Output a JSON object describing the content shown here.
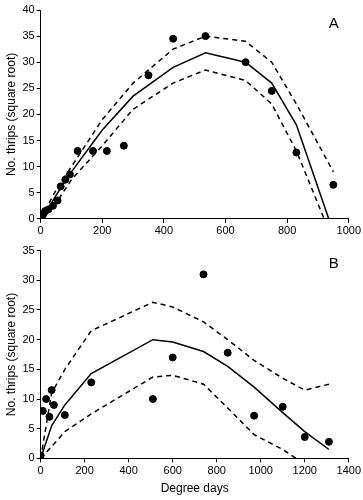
{
  "chart_data": [
    {
      "type": "scatter",
      "title": "A",
      "ylabel": "No. thrips (square root)",
      "xlim": [
        0,
        1000
      ],
      "xticks": [
        0,
        200,
        400,
        600,
        800,
        1000
      ],
      "ylim": [
        0,
        40
      ],
      "yticks": [
        0,
        5,
        10,
        15,
        20,
        25,
        30,
        35,
        40
      ],
      "grid": false,
      "series": [
        {
          "type": "scatter",
          "marker": "circle",
          "color": "#000000",
          "x": [
            0,
            5,
            10,
            15,
            25,
            40,
            55,
            65,
            80,
            95,
            120,
            170,
            215,
            270,
            350,
            430,
            535,
            665,
            750,
            830,
            950
          ],
          "values": [
            0,
            0.5,
            1,
            1.5,
            1.8,
            2.5,
            3.5,
            6.2,
            7.5,
            8.5,
            13,
            13,
            13,
            14,
            27.5,
            34.5,
            35,
            30,
            24.5,
            12.7,
            6.5
          ]
        },
        {
          "type": "line",
          "line_style": "solid",
          "marker": "none",
          "color": "#000000",
          "x": [
            0,
            25,
            50,
            100,
            200,
            300,
            430,
            535,
            665,
            750,
            830,
            935
          ],
          "values": [
            0,
            2,
            4.5,
            9,
            17,
            23.5,
            29,
            31.8,
            30,
            26,
            18,
            0
          ]
        },
        {
          "type": "line",
          "line_style": "dashed",
          "marker": "none",
          "color": "#000000",
          "x": [
            0,
            50,
            100,
            200,
            300,
            430,
            535,
            665,
            750,
            830,
            950
          ],
          "values": [
            0,
            5.5,
            10,
            19,
            26,
            32.5,
            35,
            34,
            30,
            22,
            9
          ]
        },
        {
          "type": "line",
          "line_style": "dashed",
          "marker": "none",
          "color": "#000000",
          "x": [
            0,
            50,
            100,
            200,
            300,
            430,
            535,
            665,
            750,
            830,
            920
          ],
          "values": [
            0,
            3,
            7.5,
            14,
            21,
            26,
            28.5,
            26.5,
            22,
            13,
            0
          ]
        }
      ]
    },
    {
      "type": "scatter",
      "title": "B",
      "ylabel": "No. thrips (square root)",
      "xlabel": "Degree days",
      "xlim": [
        0,
        1400
      ],
      "xticks": [
        0,
        200,
        400,
        600,
        800,
        1000,
        1200,
        1400
      ],
      "ylim": [
        0,
        35
      ],
      "yticks": [
        0,
        5,
        10,
        15,
        20,
        25,
        30,
        35
      ],
      "grid": false,
      "series": [
        {
          "type": "scatter",
          "marker": "circle",
          "color": "#000000",
          "x": [
            0,
            10,
            25,
            40,
            50,
            60,
            110,
            230,
            510,
            600,
            740,
            850,
            970,
            1100,
            1200,
            1310
          ],
          "values": [
            0.5,
            8,
            10,
            7,
            11.5,
            9,
            7.3,
            12.8,
            10,
            17,
            31,
            17.8,
            7.2,
            8.7,
            3.6,
            2.8
          ]
        },
        {
          "type": "line",
          "line_style": "solid",
          "marker": "none",
          "color": "#000000",
          "x": [
            0,
            50,
            110,
            230,
            510,
            600,
            740,
            850,
            970,
            1100,
            1200,
            1310
          ],
          "values": [
            0,
            5.5,
            9,
            14.3,
            20,
            19.6,
            18,
            15.5,
            12,
            7.7,
            4.5,
            1.5
          ]
        },
        {
          "type": "line",
          "line_style": "dashed",
          "marker": "none",
          "color": "#000000",
          "x": [
            0,
            50,
            110,
            230,
            510,
            600,
            740,
            850,
            970,
            1100,
            1200,
            1310
          ],
          "values": [
            0,
            11,
            15,
            21.5,
            26.3,
            25.5,
            23,
            20,
            16.5,
            13.5,
            11.5,
            12.5
          ]
        },
        {
          "type": "line",
          "line_style": "dashed",
          "marker": "none",
          "color": "#000000",
          "x": [
            0,
            50,
            110,
            230,
            510,
            600,
            740,
            850,
            970,
            1100,
            1160
          ],
          "values": [
            0,
            2,
            4.5,
            7.5,
            13.7,
            14,
            12.5,
            8.5,
            4,
            1.5,
            0
          ]
        }
      ]
    }
  ]
}
